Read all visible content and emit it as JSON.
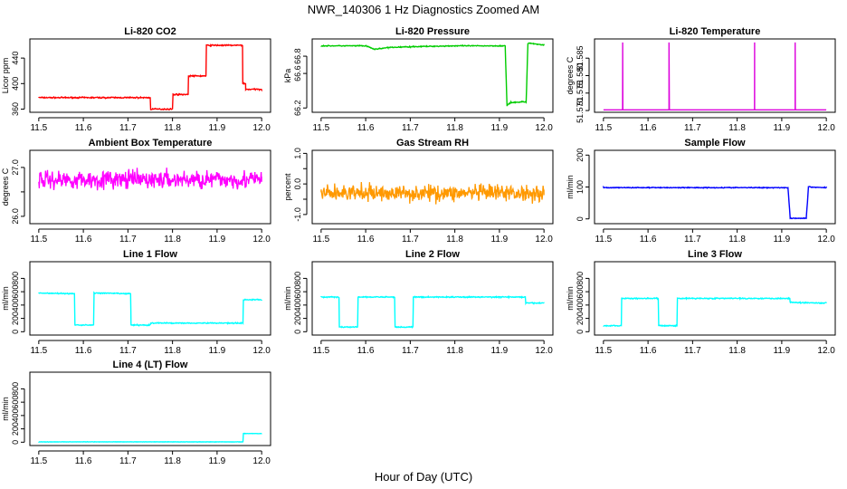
{
  "figure": {
    "title": "NWR_140306  1 Hz Diagnostics Zoomed AM",
    "xlabel": "Hour of Day (UTC)"
  },
  "chart_data": [
    {
      "type": "line",
      "title": "Li-820 CO2",
      "ylabel": "Licor ppm",
      "color": "#ff0000",
      "xlim": [
        11.48,
        12.02
      ],
      "ylim": [
        355,
        470
      ],
      "yticks": [
        360,
        400,
        440
      ],
      "xticks": [
        11.5,
        11.6,
        11.7,
        11.8,
        11.9,
        12.0
      ],
      "series": [
        {
          "noise": 1.5,
          "x": [
            11.5,
            11.75,
            11.75,
            11.8,
            11.8,
            11.835,
            11.835,
            11.875,
            11.875,
            11.957,
            11.957,
            11.964,
            11.964,
            12.0
          ],
          "values": [
            378,
            378,
            360,
            360,
            383,
            383,
            412,
            412,
            460,
            460,
            400,
            400,
            391,
            391
          ]
        }
      ]
    },
    {
      "type": "line",
      "title": "Li-820 Pressure",
      "ylabel": "kPa",
      "color": "#00cc00",
      "xlim": [
        11.48,
        12.02
      ],
      "ylim": [
        66.15,
        67.0
      ],
      "yticks": [
        66.2,
        66.6,
        66.8
      ],
      "xticks": [
        11.5,
        11.6,
        11.7,
        11.8,
        11.9,
        12.0
      ],
      "series": [
        {
          "noise": 0.008,
          "x": [
            11.5,
            11.6,
            11.62,
            11.65,
            11.7,
            11.8,
            11.913,
            11.917,
            11.925,
            11.95,
            11.96,
            11.964,
            11.968,
            12.0
          ],
          "values": [
            66.92,
            66.92,
            66.88,
            66.9,
            66.91,
            66.92,
            66.92,
            66.23,
            66.26,
            66.27,
            66.27,
            66.95,
            66.95,
            66.93
          ]
        }
      ]
    },
    {
      "type": "line",
      "title": "Li-820 Temperature",
      "ylabel": "degrees C",
      "color": "#dd00dd",
      "xlim": [
        11.48,
        12.02
      ],
      "ylim": [
        51.5695,
        51.5905
      ],
      "yticks": [
        51.57,
        51.575,
        51.58,
        51.585
      ],
      "yticklabels": [
        "51.570",
        "51.575",
        "51.580",
        "51.585"
      ],
      "xticks": [
        11.5,
        11.6,
        11.7,
        11.8,
        11.9,
        12.0
      ],
      "series": [
        {
          "noise": 0,
          "x": [
            11.5,
            11.543,
            11.543,
            11.5431,
            11.5431,
            11.647,
            11.647,
            11.6471,
            11.6471,
            11.839,
            11.839,
            11.8391,
            11.8391,
            11.93,
            11.93,
            11.9301,
            11.9301,
            12.0
          ],
          "values": [
            51.5702,
            51.5702,
            51.5895,
            51.5895,
            51.5702,
            51.5702,
            51.5895,
            51.5895,
            51.5702,
            51.5702,
            51.5895,
            51.5895,
            51.5702,
            51.5702,
            51.5895,
            51.5895,
            51.5702,
            51.5702
          ]
        }
      ]
    },
    {
      "type": "line",
      "title": "Ambient Box Temperature",
      "ylabel": "degrees C",
      "color": "#ff00ff",
      "xlim": [
        11.48,
        12.02
      ],
      "ylim": [
        25.85,
        27.35
      ],
      "yticks": [
        26.0,
        26.5,
        27.0
      ],
      "yticklabels": [
        "26.0",
        "",
        "27.0"
      ],
      "xticks": [
        11.5,
        11.6,
        11.7,
        11.8,
        11.9,
        12.0
      ],
      "series": [
        {
          "noise": 0.28,
          "x": [
            11.5,
            12.0
          ],
          "values": [
            26.75,
            26.75
          ]
        }
      ]
    },
    {
      "type": "line",
      "title": "Gas Stream RH",
      "ylabel": "percent",
      "color": "#ff9900",
      "xlim": [
        11.48,
        12.02
      ],
      "ylim": [
        -1.3,
        1.1
      ],
      "yticks": [
        -1.0,
        -0.5,
        0.0,
        0.5,
        1.0
      ],
      "yticklabels": [
        "-1.0",
        "",
        "0.0",
        "",
        "1.0"
      ],
      "xticks": [
        11.5,
        11.6,
        11.7,
        11.8,
        11.9,
        12.0
      ],
      "series": [
        {
          "noise": 0.4,
          "x": [
            11.5,
            12.0
          ],
          "values": [
            -0.3,
            -0.3
          ]
        }
      ]
    },
    {
      "type": "line",
      "title": "Sample Flow",
      "ylabel": "ml/min",
      "color": "#0000ff",
      "xlim": [
        11.48,
        12.02
      ],
      "ylim": [
        -15,
        215
      ],
      "yticks": [
        0,
        100,
        200
      ],
      "xticks": [
        11.5,
        11.6,
        11.7,
        11.8,
        11.9,
        12.0
      ],
      "series": [
        {
          "noise": 2,
          "x": [
            11.5,
            11.914,
            11.919,
            11.955,
            11.96,
            12.0
          ],
          "values": [
            98,
            98,
            2,
            2,
            100,
            98
          ]
        }
      ]
    },
    {
      "type": "line",
      "title": "Line 1 Flow",
      "ylabel": "ml/min",
      "color": "#00ffff",
      "xlim": [
        11.48,
        12.02
      ],
      "ylim": [
        -50,
        1050
      ],
      "yticks": [
        0,
        200,
        400,
        600,
        800
      ],
      "xticks": [
        11.5,
        11.6,
        11.7,
        11.8,
        11.9,
        12.0
      ],
      "series": [
        {
          "noise": 12,
          "x": [
            11.5,
            11.58,
            11.581,
            11.623,
            11.624,
            11.706,
            11.707,
            11.75,
            11.751,
            11.958,
            11.959,
            12.0
          ],
          "values": [
            580,
            570,
            100,
            100,
            580,
            570,
            100,
            100,
            130,
            130,
            480,
            480
          ]
        }
      ]
    },
    {
      "type": "line",
      "title": "Line 2 Flow",
      "ylabel": "ml/min",
      "color": "#00ffff",
      "xlim": [
        11.48,
        12.02
      ],
      "ylim": [
        -50,
        1050
      ],
      "yticks": [
        0,
        200,
        400,
        600,
        800
      ],
      "xticks": [
        11.5,
        11.6,
        11.7,
        11.8,
        11.9,
        12.0
      ],
      "series": [
        {
          "noise": 12,
          "x": [
            11.5,
            11.54,
            11.541,
            11.582,
            11.583,
            11.665,
            11.666,
            11.706,
            11.707,
            11.958,
            11.959,
            12.0
          ],
          "values": [
            520,
            520,
            70,
            70,
            520,
            520,
            70,
            70,
            520,
            520,
            430,
            430
          ]
        }
      ]
    },
    {
      "type": "line",
      "title": "Line 3 Flow",
      "ylabel": "ml/min",
      "color": "#00ffff",
      "xlim": [
        11.48,
        12.02
      ],
      "ylim": [
        -50,
        1050
      ],
      "yticks": [
        0,
        200,
        400,
        600,
        800
      ],
      "xticks": [
        11.5,
        11.6,
        11.7,
        11.8,
        11.9,
        12.0
      ],
      "series": [
        {
          "noise": 12,
          "x": [
            11.5,
            11.54,
            11.541,
            11.623,
            11.624,
            11.665,
            11.666,
            11.918,
            11.919,
            12.0
          ],
          "values": [
            90,
            90,
            500,
            500,
            90,
            90,
            500,
            500,
            440,
            430
          ]
        }
      ]
    },
    {
      "type": "line",
      "title": "Line 4 (LT) Flow",
      "ylabel": "ml/min",
      "color": "#00ffff",
      "xlim": [
        11.48,
        12.02
      ],
      "ylim": [
        -50,
        1050
      ],
      "yticks": [
        0,
        200,
        400,
        600,
        800
      ],
      "xticks": [
        11.5,
        11.6,
        11.7,
        11.8,
        11.9,
        12.0
      ],
      "series": [
        {
          "noise": 4,
          "x": [
            11.5,
            11.958,
            11.959,
            12.0
          ],
          "values": [
            5,
            5,
            130,
            130
          ]
        }
      ]
    }
  ]
}
